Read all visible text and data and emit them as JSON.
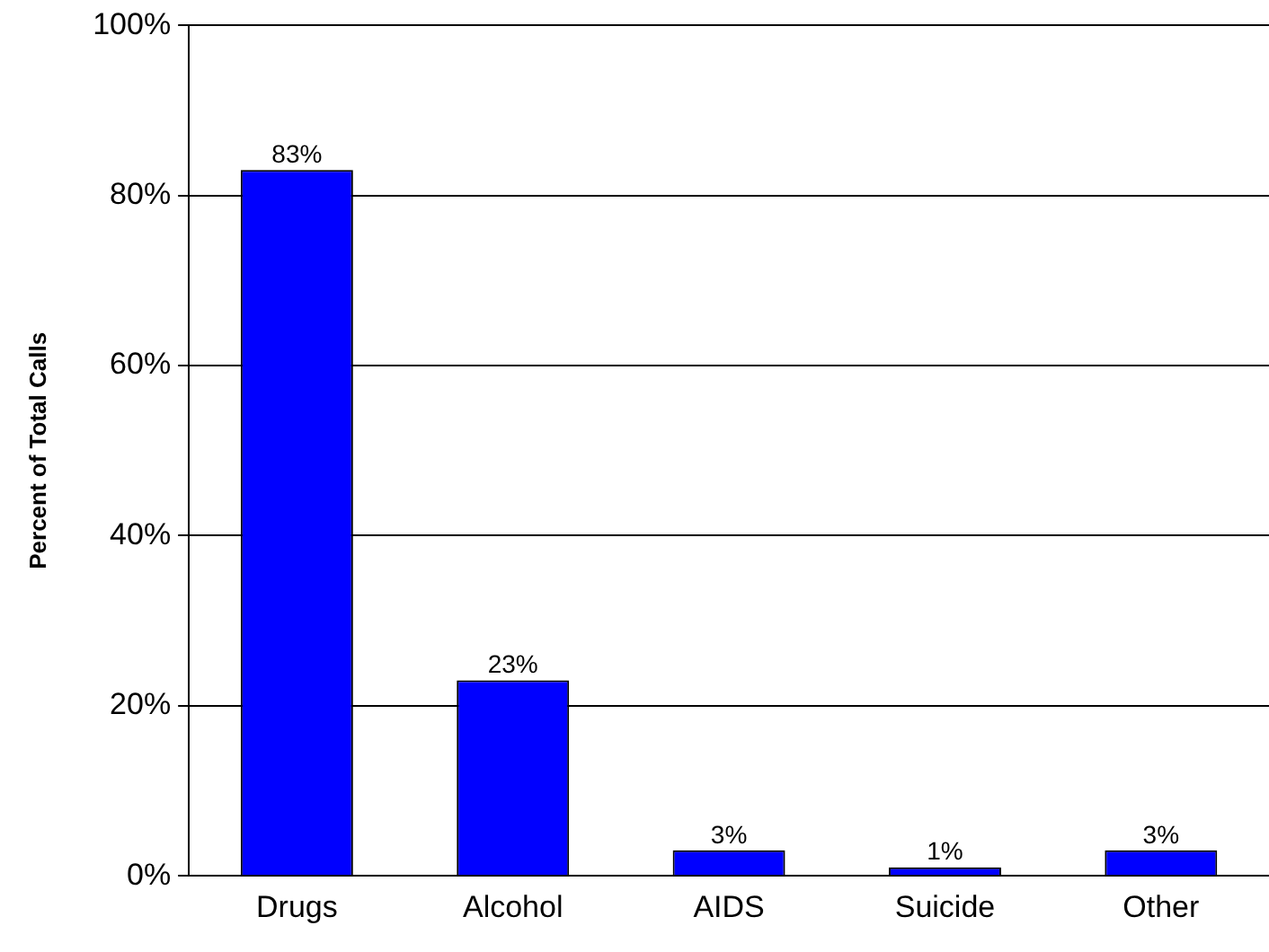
{
  "chart_data": {
    "type": "bar",
    "ylabel": "Percent of Total Calls",
    "categories": [
      "Drugs",
      "Alcohol",
      "AIDS",
      "Suicide",
      "Other"
    ],
    "values": [
      83,
      23,
      3,
      1,
      3
    ],
    "value_labels": [
      "83%",
      "23%",
      "3%",
      "1%",
      "3%"
    ],
    "color": "#0000ff",
    "ylim": [
      0,
      100
    ],
    "yticks": [
      {
        "value": 0,
        "label": "0%"
      },
      {
        "value": 20,
        "label": "20%"
      },
      {
        "value": 40,
        "label": "40%"
      },
      {
        "value": 60,
        "label": "60%"
      },
      {
        "value": 80,
        "label": "80%"
      },
      {
        "value": 100,
        "label": "100%"
      }
    ],
    "grid": "y",
    "legend": false
  }
}
